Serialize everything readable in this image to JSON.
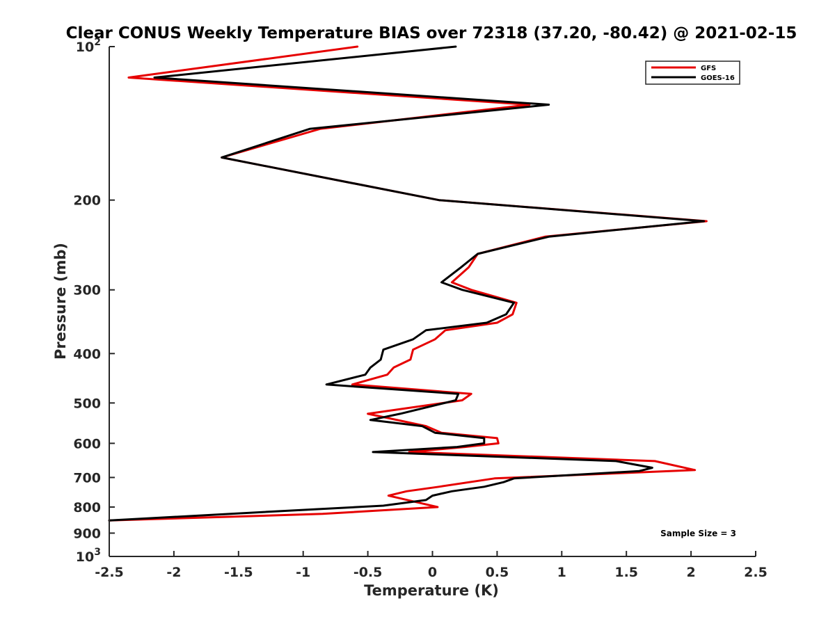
{
  "chart_data": {
    "type": "line",
    "title": "Clear CONUS Weekly Temperature BIAS over 72318 (37.20, -80.42) @ 2021-02-15",
    "xlabel": "Temperature (K)",
    "ylabel": "Pressure (mb)",
    "xlim": [
      -2.5,
      2.5
    ],
    "ylim": [
      100,
      1000
    ],
    "yscale": "log",
    "y_reversed": true,
    "grid": false,
    "legend_position": "top-right",
    "x_ticks": [
      -2.5,
      -2,
      -1.5,
      -1,
      -0.5,
      0,
      0.5,
      1,
      1.5,
      2,
      2.5
    ],
    "x_tick_labels": [
      "-2.5",
      "-2",
      "-1.5",
      "-1",
      "-0.5",
      "0",
      "0.5",
      "1",
      "1.5",
      "2",
      "2.5"
    ],
    "y_ticks": [
      200,
      300,
      400,
      500,
      600,
      700,
      800,
      900
    ],
    "y_tick_labels": [
      "200",
      "300",
      "400",
      "500",
      "600",
      "700",
      "800",
      "900"
    ],
    "y_power_ticks": [
      {
        "value": 100,
        "base": "10",
        "exp": "2"
      },
      {
        "value": 1000,
        "base": "10",
        "exp": "3"
      }
    ],
    "series": [
      {
        "name": "GFS",
        "color": "#e60000",
        "points": [
          [
            -0.58,
            100
          ],
          [
            -2.35,
            115
          ],
          [
            0.75,
            130
          ],
          [
            -0.87,
            145
          ],
          [
            -1.63,
            165
          ],
          [
            0.05,
            200
          ],
          [
            2.12,
            220
          ],
          [
            0.87,
            236
          ],
          [
            0.35,
            255
          ],
          [
            0.28,
            271
          ],
          [
            0.15,
            290
          ],
          [
            0.3,
            300
          ],
          [
            0.65,
            318
          ],
          [
            0.62,
            335
          ],
          [
            0.5,
            348
          ],
          [
            0.1,
            360
          ],
          [
            0.02,
            375
          ],
          [
            -0.15,
            393
          ],
          [
            -0.17,
            411
          ],
          [
            -0.3,
            426
          ],
          [
            -0.35,
            440
          ],
          [
            -0.62,
            460
          ],
          [
            0.3,
            480
          ],
          [
            0.23,
            494
          ],
          [
            -0.5,
            525
          ],
          [
            -0.05,
            555
          ],
          [
            0.07,
            572
          ],
          [
            0.5,
            586
          ],
          [
            0.51,
            600
          ],
          [
            0.25,
            610
          ],
          [
            -0.18,
            624
          ],
          [
            1.72,
            650
          ],
          [
            2.03,
            677
          ],
          [
            0.48,
            703
          ],
          [
            0.05,
            730
          ],
          [
            -0.2,
            745
          ],
          [
            -0.34,
            760
          ],
          [
            -0.1,
            785
          ],
          [
            0.04,
            800
          ],
          [
            -0.85,
            825
          ],
          [
            -2.5,
            850
          ]
        ]
      },
      {
        "name": "GOES-16",
        "color": "#000000",
        "points": [
          [
            0.18,
            100
          ],
          [
            -2.15,
            115
          ],
          [
            0.9,
            130
          ],
          [
            -0.95,
            145
          ],
          [
            -1.63,
            165
          ],
          [
            0.05,
            200
          ],
          [
            2.1,
            220
          ],
          [
            0.9,
            236
          ],
          [
            0.35,
            255
          ],
          [
            0.22,
            271
          ],
          [
            0.07,
            290
          ],
          [
            0.23,
            300
          ],
          [
            0.63,
            318
          ],
          [
            0.57,
            335
          ],
          [
            0.42,
            348
          ],
          [
            -0.05,
            360
          ],
          [
            -0.15,
            375
          ],
          [
            -0.38,
            393
          ],
          [
            -0.4,
            411
          ],
          [
            -0.48,
            426
          ],
          [
            -0.52,
            440
          ],
          [
            -0.82,
            460
          ],
          [
            0.2,
            480
          ],
          [
            0.18,
            494
          ],
          [
            -0.25,
            525
          ],
          [
            -0.48,
            540
          ],
          [
            -0.08,
            555
          ],
          [
            0.02,
            572
          ],
          [
            0.4,
            586
          ],
          [
            0.4,
            600
          ],
          [
            0.19,
            610
          ],
          [
            -0.46,
            624
          ],
          [
            1.42,
            650
          ],
          [
            1.7,
            670
          ],
          [
            1.6,
            680
          ],
          [
            0.63,
            703
          ],
          [
            0.55,
            715
          ],
          [
            0.4,
            730
          ],
          [
            0.15,
            745
          ],
          [
            0.0,
            760
          ],
          [
            -0.05,
            775
          ],
          [
            -0.38,
            795
          ],
          [
            -1.45,
            822
          ],
          [
            -2.5,
            850
          ]
        ]
      }
    ],
    "annotation": "Sample Size = 3"
  }
}
